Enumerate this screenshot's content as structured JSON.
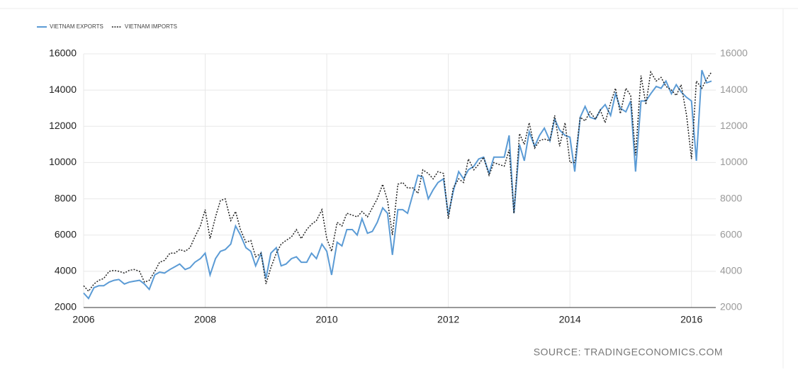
{
  "chart_data": {
    "type": "line",
    "source": "SOURCE: TRADINGECONOMICS.COM",
    "x": [
      2006,
      2006.08,
      2006.17,
      2006.25,
      2006.33,
      2006.42,
      2006.5,
      2006.58,
      2006.67,
      2006.75,
      2006.83,
      2006.92,
      2007,
      2007.08,
      2007.17,
      2007.25,
      2007.33,
      2007.42,
      2007.5,
      2007.58,
      2007.67,
      2007.75,
      2007.83,
      2007.92,
      2008,
      2008.08,
      2008.17,
      2008.25,
      2008.33,
      2008.42,
      2008.5,
      2008.58,
      2008.67,
      2008.75,
      2008.83,
      2008.92,
      2009,
      2009.08,
      2009.17,
      2009.25,
      2009.33,
      2009.42,
      2009.5,
      2009.58,
      2009.67,
      2009.75,
      2009.83,
      2009.92,
      2010,
      2010.08,
      2010.17,
      2010.25,
      2010.33,
      2010.42,
      2010.5,
      2010.58,
      2010.67,
      2010.75,
      2010.83,
      2010.92,
      2011,
      2011.08,
      2011.17,
      2011.25,
      2011.33,
      2011.42,
      2011.5,
      2011.58,
      2011.67,
      2011.75,
      2011.83,
      2011.92,
      2012,
      2012.08,
      2012.17,
      2012.25,
      2012.33,
      2012.42,
      2012.5,
      2012.58,
      2012.67,
      2012.75,
      2012.83,
      2012.92,
      2013,
      2013.08,
      2013.17,
      2013.25,
      2013.33,
      2013.42,
      2013.5,
      2013.58,
      2013.67,
      2013.75,
      2013.83,
      2013.92,
      2014,
      2014.08,
      2014.17,
      2014.25,
      2014.33,
      2014.42,
      2014.5,
      2014.58,
      2014.67,
      2014.75,
      2014.83,
      2014.92,
      2015,
      2015.08,
      2015.17,
      2015.25,
      2015.33,
      2015.42,
      2015.5,
      2015.58,
      2015.67,
      2015.75,
      2015.83,
      2015.92,
      2016,
      2016.08,
      2016.17,
      2016.25,
      2016.33
    ],
    "series": [
      {
        "name": "VIETNAM EXPORTS",
        "color": "#5b9bd5",
        "values": [
          2800,
          2500,
          3100,
          3200,
          3200,
          3400,
          3500,
          3550,
          3300,
          3400,
          3450,
          3500,
          3300,
          3000,
          3800,
          3950,
          3900,
          4100,
          4250,
          4400,
          4100,
          4200,
          4500,
          4700,
          5000,
          3800,
          4700,
          5100,
          5200,
          5500,
          6500,
          6000,
          5300,
          5100,
          4300,
          5000,
          3600,
          5000,
          5300,
          4300,
          4400,
          4700,
          4800,
          4500,
          4500,
          5000,
          4700,
          5500,
          5100,
          3800,
          5600,
          5400,
          6300,
          6300,
          6000,
          6900,
          6100,
          6200,
          6700,
          7500,
          7200,
          4900,
          7400,
          7400,
          7200,
          8300,
          9300,
          9200,
          8000,
          8500,
          8900,
          9100,
          7100,
          8400,
          9500,
          9100,
          9600,
          9800,
          10200,
          10300,
          9400,
          10300,
          10300,
          10300,
          11500,
          7200,
          11000,
          10100,
          11700,
          10900,
          11500,
          11900,
          11200,
          12400,
          11800,
          11500,
          11400,
          9500,
          12500,
          13100,
          12500,
          12400,
          12900,
          13200,
          12600,
          13800,
          13000,
          12800,
          13400,
          9500,
          13400,
          13400,
          13800,
          14200,
          14100,
          14500,
          13800,
          14300,
          13900,
          13600,
          13400,
          10100,
          15100,
          14400,
          14500
        ]
      },
      {
        "name": "VIETNAM IMPORTS",
        "color": "#222222",
        "values": [
          3200,
          2900,
          3300,
          3500,
          3600,
          4000,
          4050,
          4000,
          3900,
          4050,
          4100,
          4000,
          3400,
          3500,
          4000,
          4500,
          4600,
          5000,
          5000,
          5200,
          5100,
          5300,
          5900,
          6500,
          7400,
          5800,
          7000,
          7900,
          8000,
          6800,
          7300,
          6300,
          5600,
          5700,
          4800,
          5000,
          3300,
          4200,
          5000,
          5500,
          5700,
          5900,
          6300,
          5800,
          6300,
          6600,
          6800,
          7400,
          5800,
          5100,
          6700,
          6500,
          7200,
          7100,
          7000,
          7300,
          7000,
          7500,
          8000,
          8800,
          7900,
          6000,
          8800,
          8900,
          8600,
          8600,
          8300,
          9600,
          9400,
          9100,
          9500,
          9400,
          6900,
          8600,
          9100,
          8900,
          10200,
          9600,
          9900,
          10300,
          9300,
          10000,
          9900,
          9800,
          10700,
          7200,
          11600,
          11000,
          12200,
          10800,
          11200,
          11300,
          11200,
          12600,
          10900,
          12200,
          10000,
          10000,
          12500,
          12300,
          12800,
          12400,
          12900,
          12200,
          13300,
          14100,
          12700,
          14100,
          13700,
          10400,
          14800,
          13200,
          15000,
          14500,
          14700,
          14200,
          14000,
          13700,
          14300,
          12600,
          10200,
          14500,
          14100,
          14600,
          15000
        ]
      }
    ],
    "xlim": [
      2006,
      2016.4
    ],
    "xticks": [
      2006,
      2008,
      2010,
      2012,
      2014,
      2016
    ],
    "ylim": [
      2000,
      16000
    ],
    "yticks": [
      2000,
      4000,
      6000,
      8000,
      10000,
      12000,
      14000,
      16000
    ],
    "grid": true
  }
}
